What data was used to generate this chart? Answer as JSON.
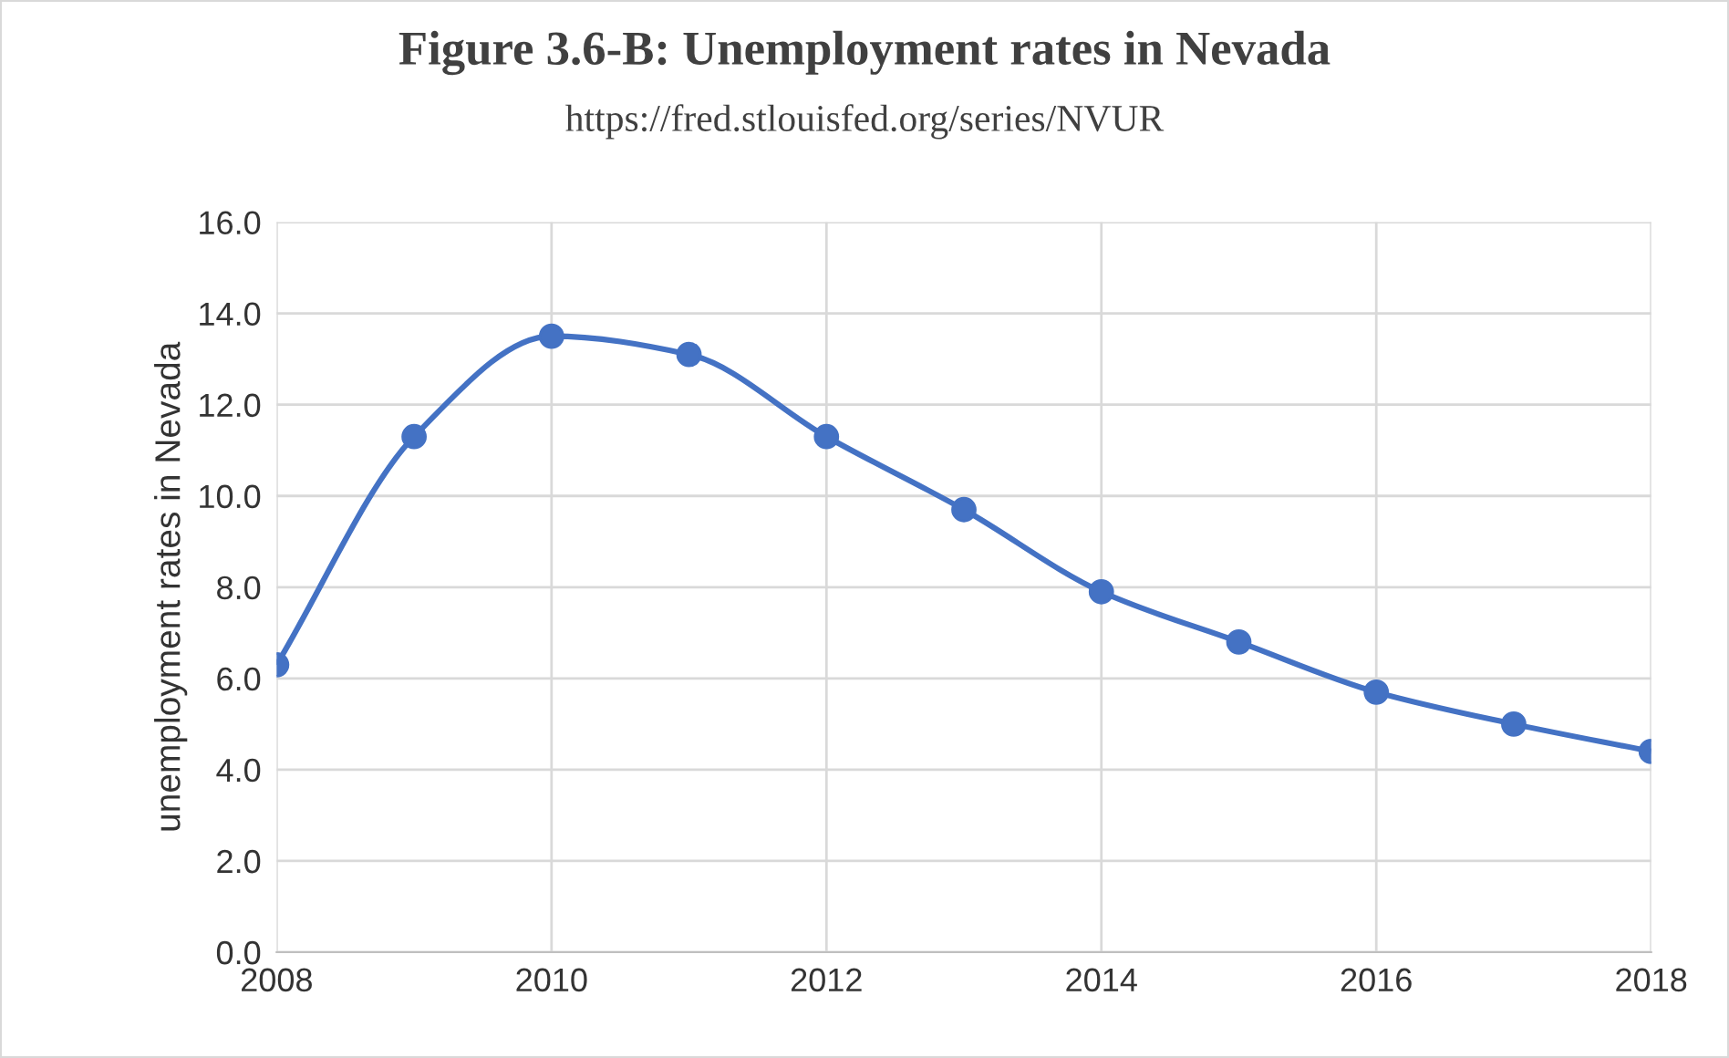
{
  "chart_data": {
    "type": "line",
    "title": "Figure 3.6-B: Unemployment rates in Nevada",
    "subtitle": "https://fred.stlouisfed.org/series/NVUR",
    "ylabel": "unemployment rates in Nevada",
    "x": [
      2008,
      2009,
      2010,
      2011,
      2012,
      2013,
      2014,
      2015,
      2016,
      2017,
      2018
    ],
    "series": [
      {
        "color": "#4472c4",
        "values": [
          6.3,
          11.3,
          13.5,
          13.1,
          11.3,
          9.7,
          7.9,
          6.8,
          5.7,
          5.0,
          4.4
        ]
      }
    ],
    "xlim": [
      2008,
      2018
    ],
    "xticks": [
      2008,
      2010,
      2012,
      2014,
      2016,
      2018
    ],
    "ylim": [
      0,
      16
    ],
    "yticks": [
      {
        "value": 0,
        "label": "0.0"
      },
      {
        "value": 2,
        "label": "2.0"
      },
      {
        "value": 4,
        "label": "4.0"
      },
      {
        "value": 6,
        "label": "6.0"
      },
      {
        "value": 8,
        "label": "8.0"
      },
      {
        "value": 10,
        "label": "10.0"
      },
      {
        "value": 12,
        "label": "12.0"
      },
      {
        "value": 14,
        "label": "14.0"
      },
      {
        "value": 16,
        "label": "16.0"
      }
    ],
    "grid": true,
    "marker": "circle",
    "line_style": "solid"
  }
}
